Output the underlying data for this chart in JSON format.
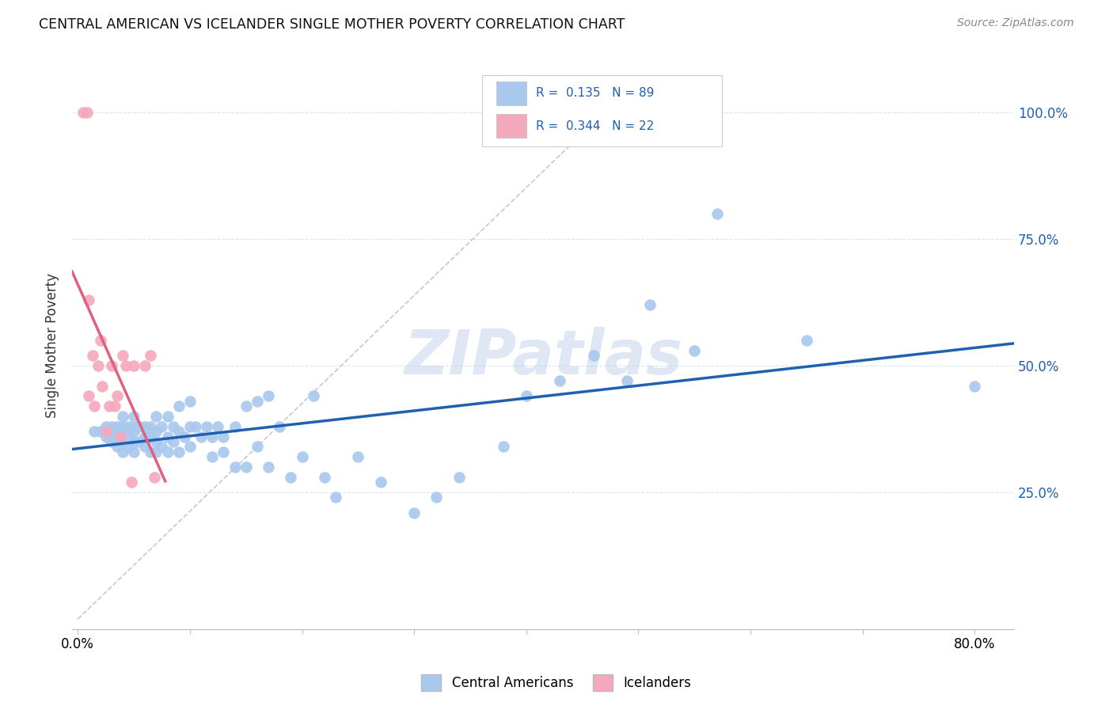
{
  "title": "CENTRAL AMERICAN VS ICELANDER SINGLE MOTHER POVERTY CORRELATION CHART",
  "source": "Source: ZipAtlas.com",
  "ylabel": "Single Mother Poverty",
  "xlim": [
    -0.005,
    0.835
  ],
  "ylim": [
    -0.02,
    1.1
  ],
  "x_ticks": [
    0.0,
    0.1,
    0.2,
    0.3,
    0.4,
    0.5,
    0.6,
    0.7,
    0.8
  ],
  "x_tick_labels": [
    "0.0%",
    "",
    "",
    "",
    "",
    "",
    "",
    "",
    "80.0%"
  ],
  "y_ticks": [
    0.25,
    0.5,
    0.75,
    1.0
  ],
  "y_tick_labels": [
    "25.0%",
    "50.0%",
    "75.0%",
    "100.0%"
  ],
  "blue_color": "#A8C8EE",
  "pink_color": "#F4A8BC",
  "blue_line_color": "#2060B0",
  "pink_line_color": "#E06080",
  "diagonal_color": "#C8C8C8",
  "watermark": "ZIPatlas",
  "watermark_color": "#C8D8EC",
  "blue_scatter_x": [
    0.015,
    0.02,
    0.025,
    0.025,
    0.03,
    0.03,
    0.03,
    0.03,
    0.035,
    0.035,
    0.035,
    0.04,
    0.04,
    0.04,
    0.04,
    0.04,
    0.045,
    0.045,
    0.045,
    0.05,
    0.05,
    0.05,
    0.05,
    0.05,
    0.055,
    0.055,
    0.06,
    0.06,
    0.06,
    0.065,
    0.065,
    0.065,
    0.07,
    0.07,
    0.07,
    0.07,
    0.075,
    0.075,
    0.08,
    0.08,
    0.08,
    0.085,
    0.085,
    0.09,
    0.09,
    0.09,
    0.095,
    0.1,
    0.1,
    0.1,
    0.105,
    0.11,
    0.115,
    0.12,
    0.12,
    0.125,
    0.13,
    0.13,
    0.14,
    0.14,
    0.15,
    0.15,
    0.16,
    0.16,
    0.17,
    0.17,
    0.18,
    0.19,
    0.2,
    0.21,
    0.22,
    0.23,
    0.25,
    0.27,
    0.3,
    0.32,
    0.34,
    0.38,
    0.4,
    0.43,
    0.46,
    0.49,
    0.51,
    0.55,
    0.57,
    0.65,
    0.8
  ],
  "blue_scatter_y": [
    0.37,
    0.37,
    0.36,
    0.38,
    0.35,
    0.36,
    0.37,
    0.38,
    0.34,
    0.36,
    0.38,
    0.33,
    0.35,
    0.37,
    0.38,
    0.4,
    0.34,
    0.36,
    0.38,
    0.33,
    0.35,
    0.37,
    0.38,
    0.4,
    0.35,
    0.38,
    0.34,
    0.36,
    0.38,
    0.33,
    0.36,
    0.38,
    0.33,
    0.35,
    0.37,
    0.4,
    0.34,
    0.38,
    0.33,
    0.36,
    0.4,
    0.35,
    0.38,
    0.33,
    0.37,
    0.42,
    0.36,
    0.34,
    0.38,
    0.43,
    0.38,
    0.36,
    0.38,
    0.32,
    0.36,
    0.38,
    0.33,
    0.36,
    0.3,
    0.38,
    0.3,
    0.42,
    0.34,
    0.43,
    0.3,
    0.44,
    0.38,
    0.28,
    0.32,
    0.44,
    0.28,
    0.24,
    0.32,
    0.27,
    0.21,
    0.24,
    0.28,
    0.34,
    0.44,
    0.47,
    0.52,
    0.47,
    0.62,
    0.53,
    0.8,
    0.55,
    0.46
  ],
  "pink_scatter_x": [
    0.005,
    0.008,
    0.01,
    0.01,
    0.013,
    0.015,
    0.018,
    0.02,
    0.022,
    0.025,
    0.028,
    0.03,
    0.033,
    0.035,
    0.038,
    0.04,
    0.043,
    0.048,
    0.05,
    0.06,
    0.065,
    0.068
  ],
  "pink_scatter_y": [
    1.0,
    1.0,
    0.63,
    0.44,
    0.52,
    0.42,
    0.5,
    0.55,
    0.46,
    0.37,
    0.42,
    0.5,
    0.42,
    0.44,
    0.36,
    0.52,
    0.5,
    0.27,
    0.5,
    0.5,
    0.52,
    0.28
  ]
}
